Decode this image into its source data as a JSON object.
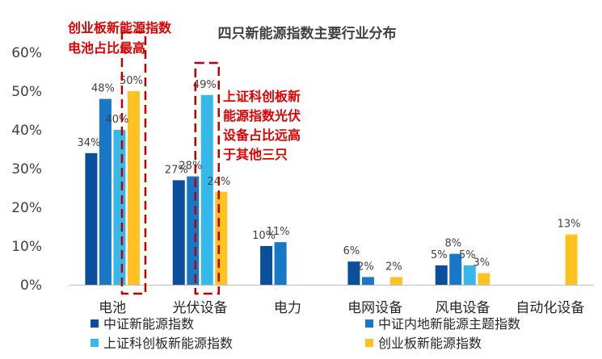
{
  "chart_data": {
    "type": "bar",
    "title": "四只新能源指数主要行业分布",
    "categories": [
      "电池",
      "光伏设备",
      "电力",
      "电网设备",
      "风电设备",
      "自动化设备"
    ],
    "ylim": [
      0,
      60
    ],
    "yticks": [
      "0%",
      "10%",
      "20%",
      "30%",
      "40%",
      "50%",
      "60%"
    ],
    "grid": false,
    "legend_position": "bottom",
    "series": [
      {
        "name": "中证新能源指数",
        "color": "#0a4f9e",
        "values": [
          34,
          27,
          10,
          6,
          5,
          null
        ],
        "labels": [
          "34%",
          "27%",
          "10%",
          "6%",
          "5%",
          ""
        ]
      },
      {
        "name": "中证内地新能源主题指数",
        "color": "#1878c8",
        "values": [
          48,
          28,
          11,
          2,
          8,
          null
        ],
        "labels": [
          "48%",
          "28%",
          "11%",
          "2%",
          "8%",
          ""
        ]
      },
      {
        "name": "上证科创板新能源指数",
        "color": "#37b8ea",
        "values": [
          40,
          49,
          null,
          null,
          5,
          null
        ],
        "labels": [
          "40%",
          "49%",
          "",
          "",
          "5%",
          ""
        ]
      },
      {
        "name": "创业板新能源指数",
        "color": "#ffc220",
        "values": [
          50,
          24,
          null,
          2,
          3,
          13
        ],
        "labels": [
          "50%",
          "24%",
          "",
          "2%",
          "3%",
          "13%"
        ]
      }
    ],
    "annotations": [
      {
        "lines": [
          "创业板新能源指数",
          "电池占比最高"
        ],
        "color": "#e00000"
      },
      {
        "lines": [
          "上证科创板新",
          "能源指数光伏",
          "设备占比远高",
          "于其他三只"
        ],
        "color": "#e00000"
      }
    ]
  }
}
